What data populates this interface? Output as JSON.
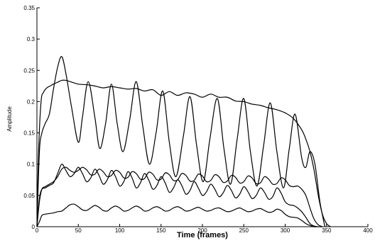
{
  "chart_data": {
    "type": "line",
    "title": "",
    "xlabel": "Time (frames)",
    "ylabel": "Amplitude",
    "xlim": [
      0,
      400
    ],
    "ylim": [
      0,
      0.35
    ],
    "xticks": [
      0,
      50,
      100,
      150,
      200,
      250,
      300,
      350,
      400
    ],
    "yticks": [
      0,
      0.05,
      0.1,
      0.15,
      0.2,
      0.25,
      0.3,
      0.35
    ],
    "xtick_labels": [
      "0",
      "50",
      "100",
      "150",
      "200",
      "250",
      "300",
      "350",
      "400"
    ],
    "ytick_labels": [
      "0",
      "0.05",
      "0.1",
      "0.15",
      "0.2",
      "0.25",
      "0.3",
      "0.35"
    ],
    "grid": false,
    "legend": "none",
    "line_color": "#000000",
    "series": [
      {
        "x": [
          0,
          2,
          5,
          8,
          12,
          16,
          20,
          25,
          30,
          35,
          40,
          50,
          60,
          70,
          80,
          90,
          100,
          110,
          120,
          130,
          140,
          150,
          160,
          170,
          180,
          190,
          200,
          210,
          220,
          230,
          240,
          250,
          260,
          270,
          280,
          290,
          300,
          310,
          320,
          325,
          330,
          335,
          340,
          345,
          350,
          355
        ],
        "y": [
          0,
          0.12,
          0.2,
          0.215,
          0.222,
          0.225,
          0.228,
          0.231,
          0.234,
          0.234,
          0.232,
          0.228,
          0.227,
          0.225,
          0.222,
          0.224,
          0.222,
          0.22,
          0.221,
          0.217,
          0.219,
          0.21,
          0.216,
          0.21,
          0.214,
          0.212,
          0.207,
          0.212,
          0.207,
          0.207,
          0.201,
          0.2,
          0.196,
          0.194,
          0.19,
          0.187,
          0.182,
          0.173,
          0.155,
          0.14,
          0.12,
          0.09,
          0.05,
          0.02,
          0.005,
          0
        ]
      },
      {
        "x": [
          0,
          3,
          6,
          10,
          15,
          20,
          25,
          30,
          35,
          42,
          50,
          55,
          62,
          70,
          76,
          83,
          90,
          97,
          104,
          112,
          120,
          128,
          136,
          144,
          152,
          160,
          168,
          177,
          185,
          193,
          201,
          209,
          218,
          226,
          234,
          242,
          250,
          258,
          266,
          274,
          282,
          290,
          298,
          305,
          312,
          320,
          325,
          330,
          336,
          342,
          348
        ],
        "y": [
          0,
          0.12,
          0.15,
          0.165,
          0.18,
          0.22,
          0.255,
          0.272,
          0.245,
          0.19,
          0.135,
          0.175,
          0.232,
          0.175,
          0.125,
          0.165,
          0.228,
          0.165,
          0.12,
          0.17,
          0.232,
          0.16,
          0.1,
          0.15,
          0.217,
          0.135,
          0.08,
          0.145,
          0.208,
          0.13,
          0.072,
          0.14,
          0.205,
          0.125,
          0.068,
          0.14,
          0.205,
          0.12,
          0.065,
          0.13,
          0.198,
          0.12,
          0.062,
          0.125,
          0.18,
          0.11,
          0.095,
          0.12,
          0.1,
          0.04,
          0
        ]
      },
      {
        "x": [
          0,
          3,
          6,
          10,
          15,
          20,
          25,
          30,
          35,
          40,
          45,
          50,
          55,
          60,
          65,
          70,
          75,
          80,
          85,
          90,
          95,
          100,
          105,
          110,
          115,
          120,
          125,
          130,
          135,
          140,
          145,
          150,
          155,
          160,
          165,
          170,
          175,
          180,
          185,
          190,
          195,
          200,
          205,
          210,
          215,
          220,
          225,
          230,
          235,
          240,
          245,
          250,
          255,
          260,
          265,
          270,
          275,
          280,
          285,
          290,
          295,
          300,
          305,
          310,
          315,
          320,
          325,
          330,
          335,
          340,
          345
        ],
        "y": [
          0,
          0.04,
          0.06,
          0.064,
          0.068,
          0.072,
          0.08,
          0.092,
          0.095,
          0.09,
          0.087,
          0.09,
          0.095,
          0.091,
          0.083,
          0.084,
          0.092,
          0.088,
          0.08,
          0.082,
          0.09,
          0.087,
          0.078,
          0.079,
          0.088,
          0.085,
          0.076,
          0.077,
          0.087,
          0.084,
          0.075,
          0.076,
          0.086,
          0.083,
          0.074,
          0.075,
          0.085,
          0.082,
          0.073,
          0.074,
          0.084,
          0.081,
          0.072,
          0.074,
          0.083,
          0.08,
          0.071,
          0.073,
          0.082,
          0.079,
          0.07,
          0.072,
          0.081,
          0.078,
          0.069,
          0.07,
          0.08,
          0.076,
          0.068,
          0.069,
          0.078,
          0.075,
          0.066,
          0.064,
          0.065,
          0.06,
          0.05,
          0.03,
          0.012,
          0.003,
          0
        ]
      },
      {
        "x": [
          0,
          3,
          6,
          10,
          15,
          20,
          25,
          30,
          35,
          40,
          45,
          50,
          55,
          60,
          65,
          70,
          75,
          80,
          85,
          90,
          95,
          100,
          105,
          110,
          115,
          120,
          125,
          130,
          135,
          140,
          145,
          150,
          155,
          160,
          165,
          170,
          175,
          180,
          185,
          190,
          195,
          200,
          205,
          210,
          215,
          220,
          225,
          230,
          235,
          240,
          245,
          250,
          255,
          260,
          265,
          270,
          275,
          280,
          285,
          290,
          295,
          300,
          305,
          310,
          315,
          320,
          325,
          330,
          335,
          340,
          345
        ],
        "y": [
          0,
          0.045,
          0.06,
          0.062,
          0.066,
          0.07,
          0.085,
          0.1,
          0.09,
          0.08,
          0.085,
          0.095,
          0.085,
          0.072,
          0.078,
          0.092,
          0.082,
          0.068,
          0.075,
          0.09,
          0.08,
          0.065,
          0.072,
          0.088,
          0.078,
          0.062,
          0.07,
          0.085,
          0.075,
          0.06,
          0.066,
          0.08,
          0.07,
          0.055,
          0.062,
          0.075,
          0.066,
          0.052,
          0.058,
          0.072,
          0.062,
          0.05,
          0.056,
          0.068,
          0.06,
          0.048,
          0.054,
          0.066,
          0.058,
          0.046,
          0.052,
          0.064,
          0.056,
          0.045,
          0.05,
          0.062,
          0.055,
          0.044,
          0.048,
          0.062,
          0.054,
          0.04,
          0.035,
          0.034,
          0.03,
          0.024,
          0.015,
          0.005,
          0.001,
          0,
          0
        ]
      },
      {
        "x": [
          0,
          3,
          6,
          10,
          15,
          20,
          25,
          30,
          35,
          40,
          45,
          50,
          55,
          60,
          65,
          70,
          75,
          80,
          85,
          90,
          95,
          100,
          105,
          110,
          115,
          120,
          125,
          130,
          135,
          140,
          145,
          150,
          155,
          160,
          165,
          170,
          175,
          180,
          185,
          190,
          195,
          200,
          205,
          210,
          215,
          220,
          225,
          230,
          235,
          240,
          245,
          250,
          255,
          260,
          265,
          270,
          275,
          280,
          285,
          290,
          295,
          300,
          305,
          310,
          315,
          320,
          325,
          330,
          335,
          340
        ],
        "y": [
          0,
          0.008,
          0.018,
          0.02,
          0.021,
          0.022,
          0.024,
          0.025,
          0.03,
          0.035,
          0.036,
          0.032,
          0.027,
          0.026,
          0.03,
          0.034,
          0.031,
          0.026,
          0.025,
          0.03,
          0.033,
          0.03,
          0.025,
          0.026,
          0.03,
          0.033,
          0.03,
          0.025,
          0.026,
          0.03,
          0.032,
          0.029,
          0.025,
          0.026,
          0.03,
          0.032,
          0.029,
          0.025,
          0.026,
          0.029,
          0.031,
          0.028,
          0.025,
          0.026,
          0.029,
          0.03,
          0.027,
          0.024,
          0.025,
          0.028,
          0.03,
          0.027,
          0.024,
          0.025,
          0.028,
          0.029,
          0.026,
          0.023,
          0.024,
          0.028,
          0.026,
          0.02,
          0.016,
          0.015,
          0.014,
          0.01,
          0.005,
          0.002,
          0,
          0
        ]
      }
    ]
  }
}
